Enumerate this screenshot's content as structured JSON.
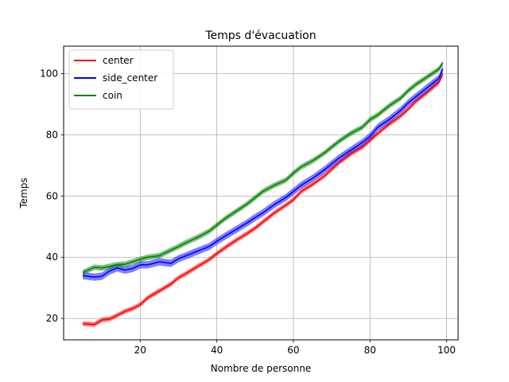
{
  "chart_data": {
    "type": "line",
    "title": "Temps d'évacuation",
    "xlabel": "Nombre de personne",
    "ylabel": "Temps",
    "xlim": [
      0,
      103
    ],
    "ylim": [
      13,
      109
    ],
    "xticks": [
      20,
      40,
      60,
      80,
      100
    ],
    "yticks": [
      20,
      40,
      60,
      80,
      100
    ],
    "grid": true,
    "legend_position": "top-left",
    "x": [
      5,
      8,
      10,
      12,
      14,
      16,
      18,
      20,
      22,
      25,
      28,
      30,
      32,
      35,
      38,
      40,
      42,
      45,
      48,
      50,
      52,
      55,
      58,
      60,
      62,
      65,
      68,
      70,
      72,
      75,
      78,
      80,
      82,
      85,
      88,
      90,
      92,
      95,
      98,
      99
    ],
    "series": [
      {
        "name": "center",
        "color": "#ff0000",
        "values": [
          18.3,
          18.0,
          19.5,
          19.8,
          21.0,
          22.3,
          23.2,
          24.5,
          26.8,
          29.0,
          31.2,
          33.3,
          34.7,
          37.0,
          39.2,
          41.2,
          43.0,
          45.5,
          47.8,
          49.5,
          51.5,
          54.5,
          57.0,
          58.8,
          61.5,
          63.8,
          66.5,
          68.8,
          71.0,
          73.8,
          76.0,
          78.2,
          80.5,
          83.5,
          86.2,
          88.5,
          91.0,
          94.0,
          97.2,
          99.8
        ],
        "band": 0.8
      },
      {
        "name": "side_center",
        "color": "#0000ff",
        "values": [
          34.0,
          33.5,
          33.8,
          35.5,
          36.5,
          35.8,
          36.3,
          37.5,
          37.5,
          38.5,
          38.0,
          39.5,
          40.5,
          42.0,
          43.5,
          45.2,
          46.8,
          49.0,
          51.3,
          53.0,
          54.5,
          57.2,
          59.5,
          61.5,
          63.5,
          65.8,
          68.5,
          70.5,
          72.5,
          75.0,
          77.5,
          79.5,
          82.5,
          85.0,
          88.0,
          90.5,
          92.5,
          95.5,
          98.5,
          101.5
        ],
        "band": 1.2
      },
      {
        "name": "coin",
        "color": "#008000",
        "values": [
          35.0,
          36.7,
          36.5,
          37.0,
          37.6,
          37.7,
          38.5,
          39.3,
          40.0,
          40.5,
          42.3,
          43.5,
          44.8,
          46.5,
          48.5,
          50.5,
          52.5,
          55.0,
          57.5,
          59.5,
          61.5,
          63.5,
          65.2,
          67.5,
          69.5,
          71.5,
          74.0,
          76.0,
          78.0,
          80.5,
          82.5,
          85.0,
          86.5,
          89.5,
          92.0,
          94.5,
          96.5,
          99.0,
          101.5,
          103.5
        ],
        "band": 0.9
      }
    ]
  }
}
